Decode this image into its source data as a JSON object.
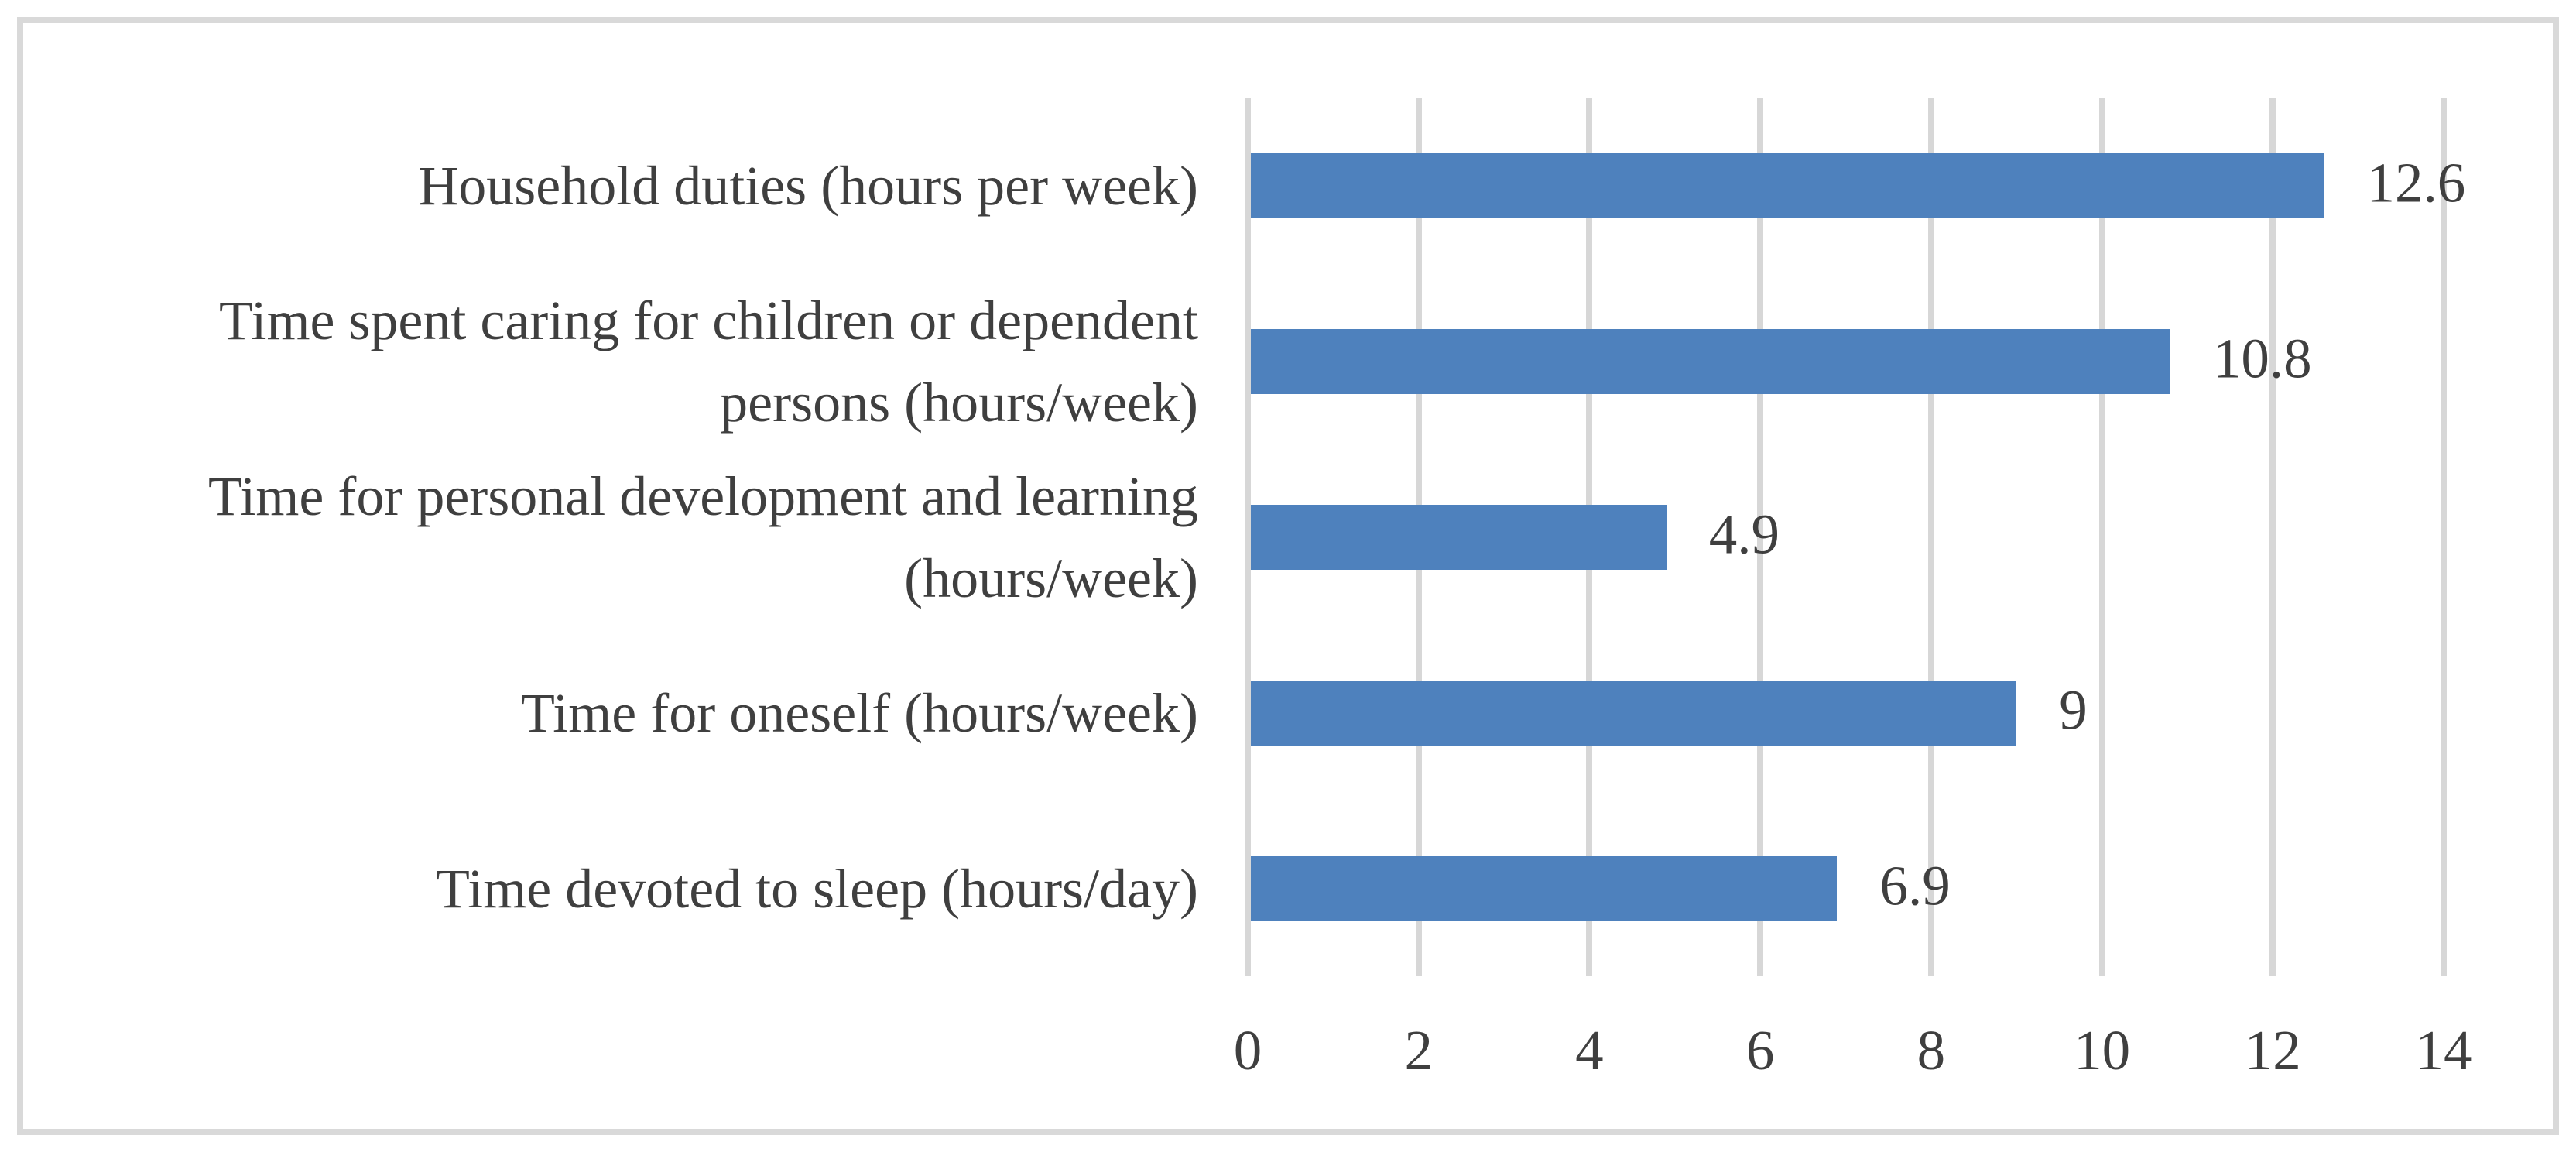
{
  "chart_data": {
    "type": "bar",
    "orientation": "horizontal",
    "title": "",
    "categories": [
      "Household duties (hours per week)",
      "Time spent caring for children or dependent persons (hours/week)",
      "Time for personal development and learning (hours/week)",
      "Time for oneself (hours/week)",
      "Time devoted to sleep (hours/day)"
    ],
    "values": [
      12.6,
      10.8,
      4.9,
      9,
      6.9
    ],
    "data_labels": [
      "12.6",
      "10.8",
      "4.9",
      "9",
      "6.9"
    ],
    "x_ticks": [
      0,
      2,
      4,
      6,
      8,
      10,
      12,
      14
    ],
    "x_tick_labels": [
      "0",
      "2",
      "4",
      "6",
      "8",
      "10",
      "12",
      "14"
    ],
    "xlim": [
      0,
      14
    ],
    "xlabel": "",
    "ylabel": "",
    "grid": "vertical",
    "legend": "none",
    "data_labels_shown": true,
    "colors": {
      "bar": "#4e81bd",
      "gridline": "#d7d7d7",
      "frame_border": "#d9d9d9",
      "text": "#3f3f3f",
      "background": "#ffffff"
    }
  }
}
